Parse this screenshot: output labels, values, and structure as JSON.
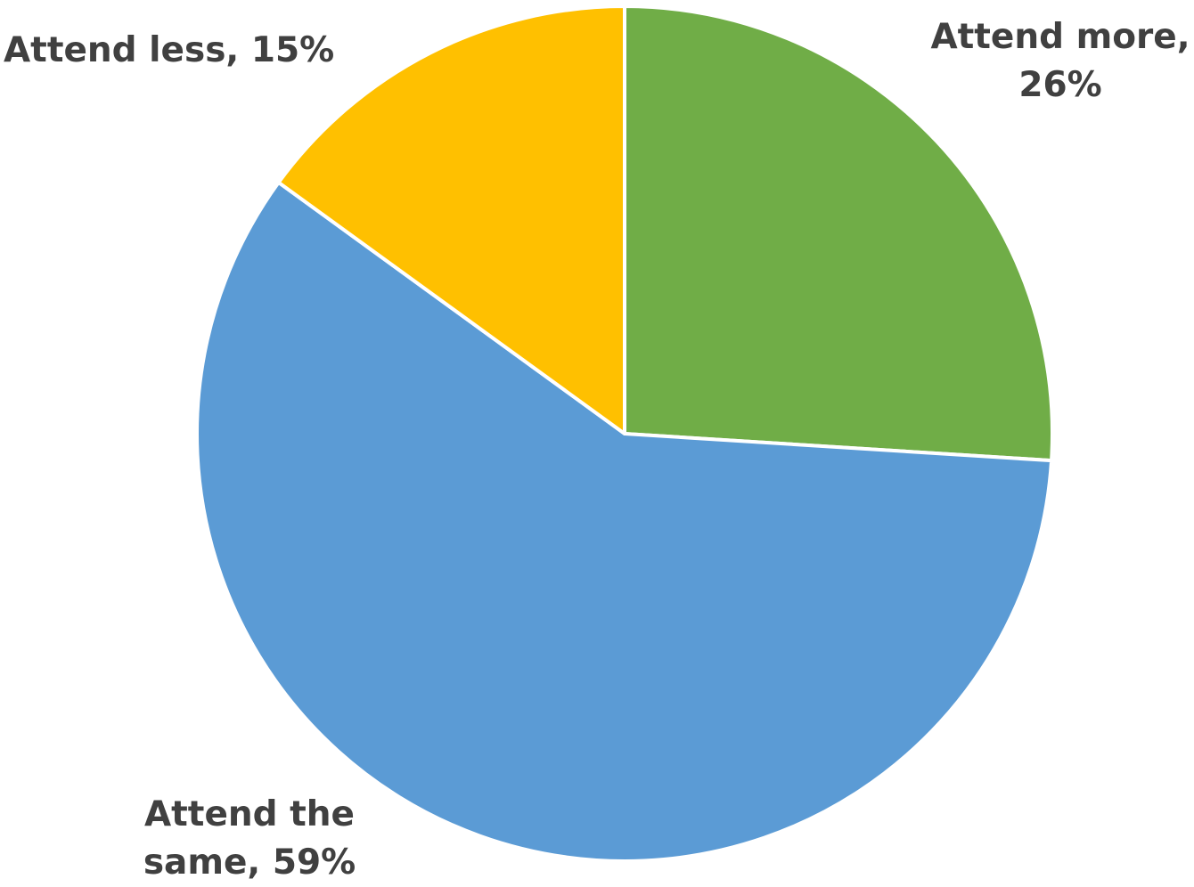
{
  "chart_data": {
    "type": "pie",
    "slices": [
      {
        "name": "Attend more",
        "value": 26,
        "color": "#70AD47",
        "label_lines": [
          "Attend more,",
          "26%"
        ]
      },
      {
        "name": "Attend the same",
        "value": 59,
        "color": "#5B9BD5",
        "label_lines": [
          "Attend the",
          "same, 59%"
        ]
      },
      {
        "name": "Attend less",
        "value": 15,
        "color": "#FFC000",
        "label_lines": [
          "Attend less, 15%"
        ]
      }
    ],
    "unit": "%",
    "legend": "none"
  }
}
